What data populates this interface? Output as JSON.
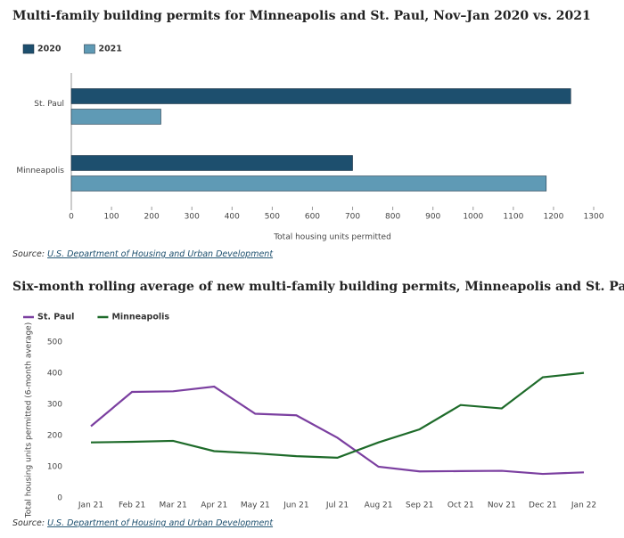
{
  "chart_data": [
    {
      "type": "hbar",
      "title": "Multi-family building permits for Minneapolis and St. Paul, Nov–Jan 2020 vs. 2021",
      "categories": [
        "St. Paul",
        "Minneapolis"
      ],
      "series": [
        {
          "name": "2020",
          "color": "#1d4f6e",
          "values": [
            1243,
            700
          ]
        },
        {
          "name": "2021",
          "color": "#5f9ab5",
          "values": [
            223,
            1182
          ]
        }
      ],
      "xlim": [
        0,
        1300
      ],
      "xticks": [
        0,
        100,
        200,
        300,
        400,
        500,
        600,
        700,
        800,
        900,
        1000,
        1100,
        1200,
        1300
      ],
      "xlabel": "Total housing units permitted",
      "source": "Source:",
      "source_link": "U.S. Department of Housing and Urban Development"
    },
    {
      "type": "line",
      "title": "Six-month rolling average of new multi-family building permits, Minneapolis and St. Paul",
      "categories": [
        "Jan 21",
        "Feb 21",
        "Mar 21",
        "Apr 21",
        "May 21",
        "Jun 21",
        "Jul 21",
        "Aug 21",
        "Sep 21",
        "Oct 21",
        "Nov 21",
        "Dec 21",
        "Jan 22"
      ],
      "series": [
        {
          "name": "St. Paul",
          "color": "#7b3fa0",
          "values": [
            230,
            340,
            342,
            357,
            270,
            265,
            193,
            100,
            85,
            86,
            87,
            77,
            82
          ]
        },
        {
          "name": "Minneapolis",
          "color": "#1e6b2a",
          "values": [
            178,
            180,
            183,
            150,
            143,
            134,
            129,
            178,
            220,
            298,
            287,
            387,
            401
          ]
        }
      ],
      "ylim": [
        0,
        500
      ],
      "yticks": [
        0,
        100,
        200,
        300,
        400,
        500
      ],
      "ylabel": "Total housing units permitted (6-month average)",
      "source": "Source:",
      "source_link": "U.S. Department of Housing and Urban Development"
    }
  ]
}
